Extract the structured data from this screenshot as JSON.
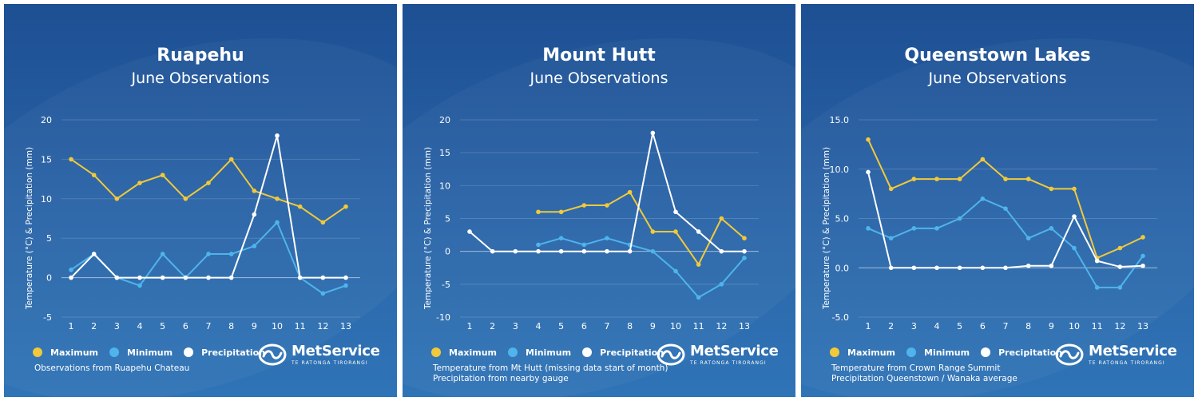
{
  "colors": {
    "maximum": "#f1c93a",
    "minimum": "#4fb4ec",
    "precipitation": "#ffffff"
  },
  "legend": {
    "maximum": "Maximum",
    "minimum": "Minimum",
    "precipitation": "Precipitation"
  },
  "logo": {
    "name": "MetService",
    "sub": "TE RATONGA TIRORANGI"
  },
  "chart_data": [
    {
      "type": "line",
      "title": "Ruapehu",
      "subtitle": "June Observations",
      "ylabel": "Temperature (°C) & Precipitation (mm)",
      "ylim": [
        -5,
        20
      ],
      "yticks": [
        -5,
        0,
        5,
        10,
        15,
        20
      ],
      "ytick_labels": [
        "-5",
        "0",
        "5",
        "10",
        "15",
        "20"
      ],
      "x": [
        1,
        2,
        3,
        4,
        5,
        6,
        7,
        8,
        9,
        10,
        11,
        12,
        13
      ],
      "series": [
        {
          "name": "Maximum",
          "color": "#f1c93a",
          "values": [
            15,
            13,
            10,
            12,
            13,
            10,
            12,
            15,
            11,
            10,
            9,
            7,
            9
          ]
        },
        {
          "name": "Minimum",
          "color": "#4fb4ec",
          "values": [
            1,
            3,
            0,
            -1,
            3,
            0,
            3,
            3,
            4,
            7,
            0,
            -2,
            -1
          ]
        },
        {
          "name": "Precipitation",
          "color": "#ffffff",
          "values": [
            0,
            3,
            0,
            0,
            0,
            0,
            0,
            0,
            8,
            18,
            0,
            0,
            0
          ]
        }
      ],
      "notes": [
        "Observations from Ruapehu Chateau"
      ]
    },
    {
      "type": "line",
      "title": "Mount Hutt",
      "subtitle": "June Observations",
      "ylabel": "Temperature (°C) & Precipitation (mm)",
      "ylim": [
        -10,
        20
      ],
      "yticks": [
        -10,
        -5,
        0,
        5,
        10,
        15,
        20
      ],
      "ytick_labels": [
        "-10",
        "-5",
        "0",
        "5",
        "10",
        "15",
        "20"
      ],
      "x": [
        1,
        2,
        3,
        4,
        5,
        6,
        7,
        8,
        9,
        10,
        11,
        12,
        13
      ],
      "series": [
        {
          "name": "Maximum",
          "color": "#f1c93a",
          "values": [
            null,
            null,
            null,
            6,
            6,
            7,
            7,
            9,
            3,
            3,
            -2,
            5,
            2
          ]
        },
        {
          "name": "Minimum",
          "color": "#4fb4ec",
          "values": [
            null,
            null,
            null,
            1,
            2,
            1,
            2,
            1,
            0,
            -3,
            -7,
            -5,
            -1
          ]
        },
        {
          "name": "Precipitation",
          "color": "#ffffff",
          "values": [
            3,
            0,
            0,
            0,
            0,
            0,
            0,
            0,
            18,
            6,
            3,
            0,
            0
          ]
        }
      ],
      "notes": [
        "Temperature from Mt Hutt (missing data start of month)",
        "Precipitation from nearby gauge"
      ]
    },
    {
      "type": "line",
      "title": "Queenstown Lakes",
      "subtitle": "June Observations",
      "ylabel": "Temperature (°C) & Precipitation (mm)",
      "ylim": [
        -5,
        15
      ],
      "yticks": [
        -5,
        0,
        5,
        10,
        15
      ],
      "ytick_labels": [
        "-5.0",
        "0.0",
        "5.0",
        "10.0",
        "15.0"
      ],
      "x": [
        1,
        2,
        3,
        4,
        5,
        6,
        7,
        8,
        9,
        10,
        11,
        12,
        13
      ],
      "series": [
        {
          "name": "Maximum",
          "color": "#f1c93a",
          "values": [
            13,
            8,
            9,
            9,
            9,
            11,
            9,
            9,
            8,
            8,
            1,
            2,
            3.1
          ]
        },
        {
          "name": "Minimum",
          "color": "#4fb4ec",
          "values": [
            4,
            3,
            4,
            4,
            5,
            7,
            6,
            3,
            4,
            2,
            -2,
            -2,
            1.2
          ]
        },
        {
          "name": "Precipitation",
          "color": "#ffffff",
          "values": [
            9.7,
            0,
            0,
            0,
            0,
            0,
            0,
            0.2,
            0.2,
            5.2,
            0.7,
            0.1,
            0.2
          ]
        }
      ],
      "notes": [
        "Temperature from Crown Range Summit",
        "Precipitation Queenstown / Wanaka average"
      ]
    }
  ]
}
